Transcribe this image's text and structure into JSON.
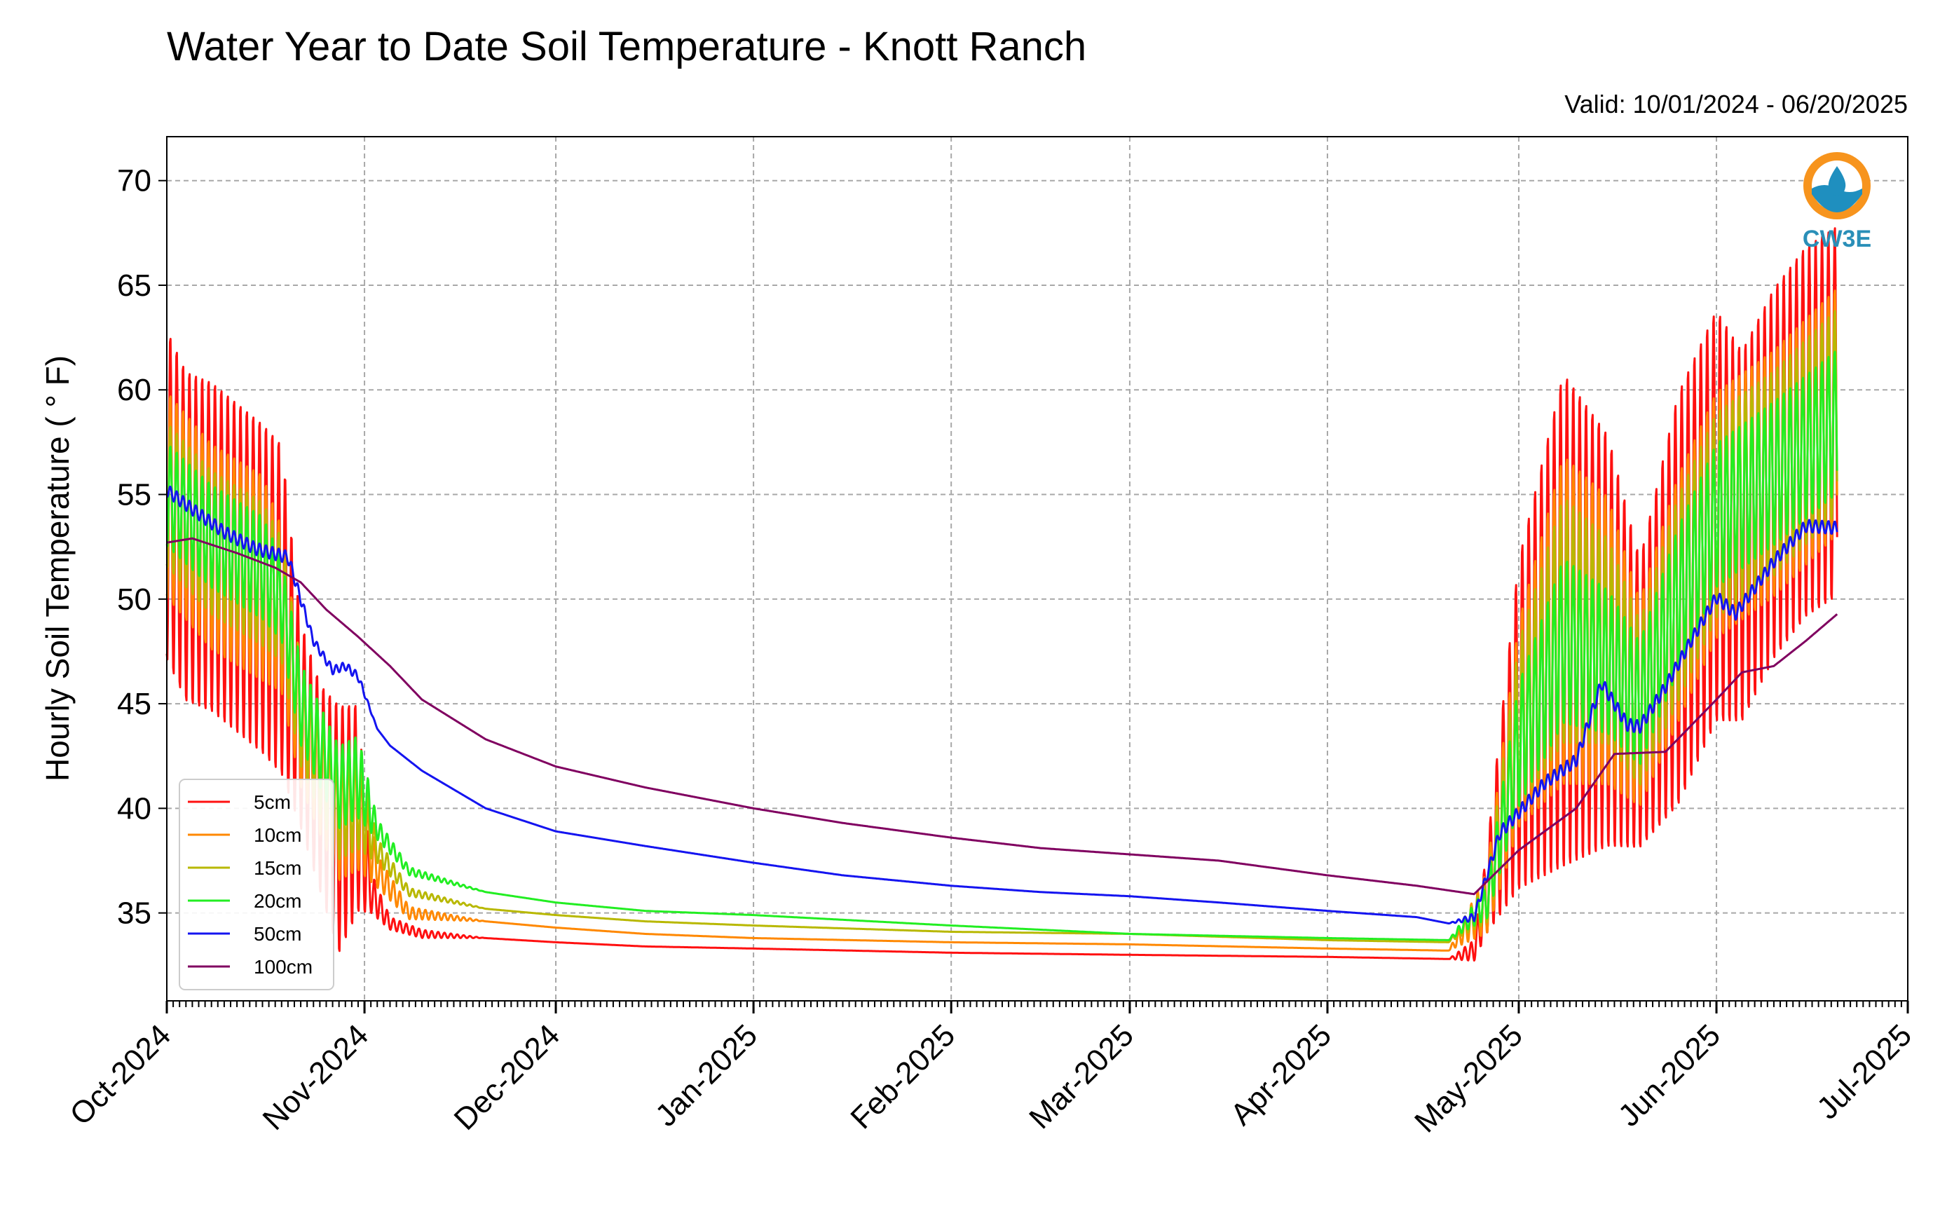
{
  "chart_data": {
    "type": "line",
    "title": "Water Year to Date Soil Temperature - Knott Ranch",
    "subtitle": "Valid: 10/01/2024 - 06/20/2025",
    "ylabel": "Hourly Soil Temperature ( ° F)",
    "xlabel": "",
    "ylim": [
      30.8,
      72.1
    ],
    "xlim": [
      "2024-10-01",
      "2025-07-01"
    ],
    "x_ticks": [
      "Oct-2024",
      "Nov-2024",
      "Dec-2024",
      "Jan-2025",
      "Feb-2025",
      "Mar-2025",
      "Apr-2025",
      "May-2025",
      "Jun-2025",
      "Jul-2025"
    ],
    "x_tick_dates": [
      "2024-10-01",
      "2024-11-01",
      "2024-12-01",
      "2025-01-01",
      "2025-02-01",
      "2025-03-01",
      "2025-04-01",
      "2025-05-01",
      "2025-06-01",
      "2025-07-01"
    ],
    "y_ticks": [
      35,
      40,
      45,
      50,
      55,
      60,
      65,
      70
    ],
    "grid": true,
    "legend_position": "lower-left",
    "logo_text": "CW3E",
    "series": [
      {
        "name": "5cm",
        "color": "#ff1010",
        "x": [
          "2024-10-01",
          "2024-10-04",
          "2024-10-08",
          "2024-10-12",
          "2024-10-16",
          "2024-10-19",
          "2024-10-22",
          "2024-10-25",
          "2024-10-28",
          "2024-10-31",
          "2024-11-02",
          "2024-11-05",
          "2024-11-10",
          "2024-11-20",
          "2024-12-01",
          "2024-12-15",
          "2025-01-01",
          "2025-02-01",
          "2025-03-01",
          "2025-04-01",
          "2025-04-20",
          "2025-04-24",
          "2025-04-26",
          "2025-05-01",
          "2025-05-08",
          "2025-05-15",
          "2025-05-20",
          "2025-05-26",
          "2025-06-01",
          "2025-06-05",
          "2025-06-10",
          "2025-06-15",
          "2025-06-20"
        ],
        "y": [
          55,
          53,
          52.5,
          51.5,
          50.5,
          49.5,
          44,
          41,
          39,
          40,
          36,
          34.5,
          34,
          33.8,
          33.6,
          33.4,
          33.3,
          33.1,
          33,
          32.9,
          32.8,
          33.2,
          36,
          44,
          49,
          48,
          45,
          50,
          54,
          53,
          56,
          58,
          59
        ],
        "amp": [
          8,
          8,
          8,
          8,
          8,
          8,
          5,
          5,
          6,
          5,
          1,
          0.3,
          0.2,
          0,
          0,
          0,
          0,
          0,
          0,
          0,
          0,
          0.5,
          2,
          8,
          12,
          10,
          7,
          10,
          10,
          9,
          9,
          9,
          9
        ]
      },
      {
        "name": "10cm",
        "color": "#ff8800",
        "x": [
          "2024-10-01",
          "2024-10-08",
          "2024-10-16",
          "2024-10-19",
          "2024-10-22",
          "2024-10-28",
          "2024-10-31",
          "2024-11-03",
          "2024-11-08",
          "2024-11-20",
          "2024-12-01",
          "2024-12-15",
          "2025-01-01",
          "2025-02-01",
          "2025-03-01",
          "2025-04-01",
          "2025-04-20",
          "2025-04-26",
          "2025-05-01",
          "2025-05-08",
          "2025-05-15",
          "2025-05-20",
          "2025-05-26",
          "2025-06-01",
          "2025-06-10",
          "2025-06-20"
        ],
        "y": [
          55,
          52.5,
          51,
          49.5,
          44,
          39.5,
          40,
          37,
          35,
          34.6,
          34.3,
          34,
          33.8,
          33.6,
          33.5,
          33.3,
          33.2,
          35.5,
          44,
          49,
          48,
          45,
          50,
          54,
          56,
          59
        ],
        "amp": [
          5,
          5,
          5,
          4,
          3,
          3,
          3,
          0.8,
          0.3,
          0,
          0,
          0,
          0,
          0,
          0,
          0,
          0,
          1.5,
          5,
          8,
          7,
          5,
          6,
          6,
          6,
          6
        ]
      },
      {
        "name": "15cm",
        "color": "#b8b800",
        "x": [
          "2024-10-01",
          "2024-10-08",
          "2024-10-16",
          "2024-10-19",
          "2024-10-22",
          "2024-10-28",
          "2024-10-31",
          "2024-11-03",
          "2024-11-08",
          "2024-11-20",
          "2024-12-01",
          "2024-12-15",
          "2025-01-01",
          "2025-02-01",
          "2025-03-01",
          "2025-04-01",
          "2025-04-20",
          "2025-04-26",
          "2025-05-01",
          "2025-05-08",
          "2025-05-15",
          "2025-05-20",
          "2025-05-26",
          "2025-06-01",
          "2025-06-10",
          "2025-06-20"
        ],
        "y": [
          55,
          52.7,
          51.2,
          50,
          44.5,
          40,
          40.5,
          38,
          36,
          35.2,
          34.9,
          34.6,
          34.4,
          34.1,
          34,
          33.7,
          33.6,
          35.5,
          44,
          49,
          48,
          45,
          50,
          54,
          56,
          59
        ],
        "amp": [
          3.5,
          3.5,
          3.5,
          3,
          2.5,
          2.5,
          2.5,
          0.6,
          0.2,
          0,
          0,
          0,
          0,
          0,
          0,
          0,
          0,
          1,
          4,
          6,
          5,
          4,
          5,
          5,
          5,
          5
        ]
      },
      {
        "name": "20cm",
        "color": "#22ee22",
        "x": [
          "2024-10-01",
          "2024-10-08",
          "2024-10-16",
          "2024-10-19",
          "2024-10-22",
          "2024-10-28",
          "2024-10-31",
          "2024-11-03",
          "2024-11-08",
          "2024-11-20",
          "2024-12-01",
          "2024-12-15",
          "2025-01-01",
          "2025-02-01",
          "2025-03-01",
          "2025-04-01",
          "2025-04-20",
          "2025-04-26",
          "2025-05-01",
          "2025-05-08",
          "2025-05-15",
          "2025-05-20",
          "2025-05-26",
          "2025-06-01",
          "2025-06-10",
          "2025-06-20"
        ],
        "y": [
          55,
          53,
          51.5,
          50,
          45,
          41,
          41.5,
          39,
          37,
          36,
          35.5,
          35.1,
          34.9,
          34.4,
          34,
          33.8,
          33.7,
          35.5,
          43,
          48,
          47,
          45,
          50,
          54,
          56,
          58.5
        ],
        "amp": [
          2.5,
          2.5,
          2.5,
          2,
          2,
          2,
          2,
          0.5,
          0.2,
          0,
          0,
          0,
          0,
          0,
          0,
          0,
          0,
          0.8,
          3,
          4,
          3.5,
          3,
          3.5,
          3.5,
          3.5,
          3.5
        ]
      },
      {
        "name": "50cm",
        "color": "#1414f0",
        "x": [
          "2024-10-01",
          "2024-10-05",
          "2024-10-10",
          "2024-10-15",
          "2024-10-20",
          "2024-10-24",
          "2024-10-27",
          "2024-10-29",
          "2024-10-31",
          "2024-11-03",
          "2024-11-05",
          "2024-11-10",
          "2024-11-20",
          "2024-12-01",
          "2024-12-15",
          "2025-01-01",
          "2025-01-15",
          "2025-02-01",
          "2025-02-15",
          "2025-03-01",
          "2025-03-15",
          "2025-04-01",
          "2025-04-15",
          "2025-04-20",
          "2025-04-24",
          "2025-04-28",
          "2025-05-01",
          "2025-05-05",
          "2025-05-10",
          "2025-05-14",
          "2025-05-18",
          "2025-05-20",
          "2025-05-24",
          "2025-05-28",
          "2025-06-01",
          "2025-06-04",
          "2025-06-10",
          "2025-06-15",
          "2025-06-20"
        ],
        "y": [
          55.2,
          54.3,
          53.2,
          52.4,
          52,
          48,
          46.6,
          46.8,
          46.3,
          43.8,
          43,
          41.8,
          40,
          38.9,
          38.2,
          37.4,
          36.8,
          36.3,
          36,
          35.8,
          35.5,
          35.1,
          34.8,
          34.5,
          34.8,
          38.8,
          39.8,
          41.2,
          42.3,
          46,
          44,
          43.9,
          45.8,
          48,
          50.1,
          49.3,
          51.8,
          53.5,
          53.4
        ],
        "amp": [
          0.3,
          0.3,
          0.3,
          0.3,
          0.3,
          0.2,
          0.2,
          0.2,
          0.2,
          0,
          0,
          0,
          0,
          0,
          0,
          0,
          0,
          0,
          0,
          0,
          0,
          0,
          0,
          0,
          0.2,
          0.3,
          0.3,
          0.3,
          0.3,
          0.3,
          0.3,
          0.3,
          0.3,
          0.3,
          0.3,
          0.3,
          0.3,
          0.3,
          0.3
        ]
      },
      {
        "name": "100cm",
        "color": "#800060",
        "x": [
          "2024-10-01",
          "2024-10-05",
          "2024-10-12",
          "2024-10-18",
          "2024-10-22",
          "2024-10-26",
          "2024-10-31",
          "2024-11-05",
          "2024-11-10",
          "2024-11-20",
          "2024-12-01",
          "2024-12-15",
          "2025-01-01",
          "2025-01-15",
          "2025-02-01",
          "2025-02-15",
          "2025-03-01",
          "2025-03-15",
          "2025-04-01",
          "2025-04-15",
          "2025-04-24",
          "2025-05-01",
          "2025-05-10",
          "2025-05-16",
          "2025-05-24",
          "2025-06-01",
          "2025-06-05",
          "2025-06-10",
          "2025-06-15",
          "2025-06-20"
        ],
        "y": [
          52.7,
          52.9,
          52.2,
          51.5,
          50.8,
          49.5,
          48.2,
          46.8,
          45.2,
          43.3,
          42,
          41,
          40,
          39.3,
          38.6,
          38.1,
          37.8,
          37.5,
          36.8,
          36.3,
          35.9,
          38,
          40,
          42.6,
          42.7,
          45.2,
          46.5,
          46.8,
          48,
          49.3
        ],
        "amp": [
          0,
          0,
          0,
          0,
          0,
          0,
          0,
          0,
          0,
          0,
          0,
          0,
          0,
          0,
          0,
          0,
          0,
          0,
          0,
          0,
          0,
          0,
          0,
          0,
          0,
          0,
          0,
          0,
          0,
          0
        ]
      }
    ]
  }
}
